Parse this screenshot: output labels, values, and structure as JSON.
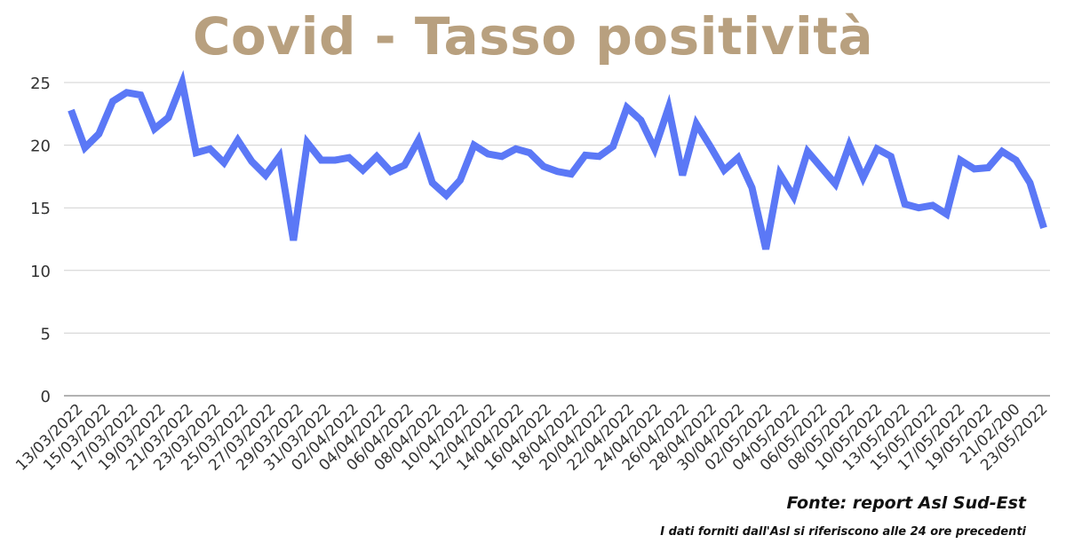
{
  "chart_data": {
    "type": "line",
    "title": "Covid - Tasso positività",
    "xlabel": "",
    "ylabel": "",
    "ylim": [
      0,
      25
    ],
    "y_ticks": [
      0,
      5,
      10,
      15,
      20,
      25
    ],
    "grid": true,
    "legend": "none",
    "x_tick_labels": [
      "13/03/2022",
      "15/03/2022",
      "17/03/2022",
      "19/03/2022",
      "21/03/2022",
      "23/03/2022",
      "25/03/2022",
      "27/03/2022",
      "29/03/2022",
      "31/03/2022",
      "02/04/2022",
      "04/04/2022",
      "06/04/2022",
      "08/04/2022",
      "10/04/2022",
      "12/04/2022",
      "14/04/2022",
      "16/04/2022",
      "18/04/2022",
      "20/04/2022",
      "22/04/2022",
      "24/04/2022",
      "26/04/2022",
      "28/04/2022",
      "30/04/2022",
      "02/05/2022",
      "04/05/2022",
      "06/05/2022",
      "08/05/2022",
      "10/05/2022",
      "13/05/2022",
      "15/05/2022",
      "17/05/2022",
      "19/05/2022",
      "21/02/200",
      "23/05/2022"
    ],
    "series": [
      {
        "values": [
          22.8,
          19.8,
          20.9,
          23.5,
          24.2,
          24.0,
          21.3,
          22.2,
          25.0,
          19.4,
          19.7,
          18.6,
          20.4,
          18.7,
          17.6,
          19.1,
          12.4,
          20.2,
          18.8,
          18.8,
          19.0,
          18.0,
          19.1,
          17.9,
          18.4,
          20.4,
          17.0,
          16.0,
          17.2,
          20.0,
          19.3,
          19.1,
          19.7,
          19.4,
          18.3,
          17.9,
          17.7,
          19.2,
          19.1,
          19.9,
          23.0,
          22.0,
          19.7,
          23.0,
          17.6,
          21.7,
          19.9,
          18.0,
          19.0,
          16.6,
          11.7,
          17.7,
          15.9,
          19.5,
          18.2,
          16.9,
          20.0,
          17.4,
          19.7,
          19.1,
          15.3,
          15.0,
          15.2,
          14.5,
          18.8,
          18.1,
          18.2,
          19.5,
          18.8,
          17.0,
          13.4
        ]
      }
    ]
  },
  "colors": {
    "title": "#b8a07f",
    "line": "#5b78f6",
    "grid": "#d0d0d0",
    "axis": "#999999",
    "tick_text": "#333333"
  },
  "footer": {
    "source": "Fonte: report Asl Sud-Est",
    "note": "I dati forniti dall'Asl si riferiscono alle 24 ore precedenti"
  }
}
